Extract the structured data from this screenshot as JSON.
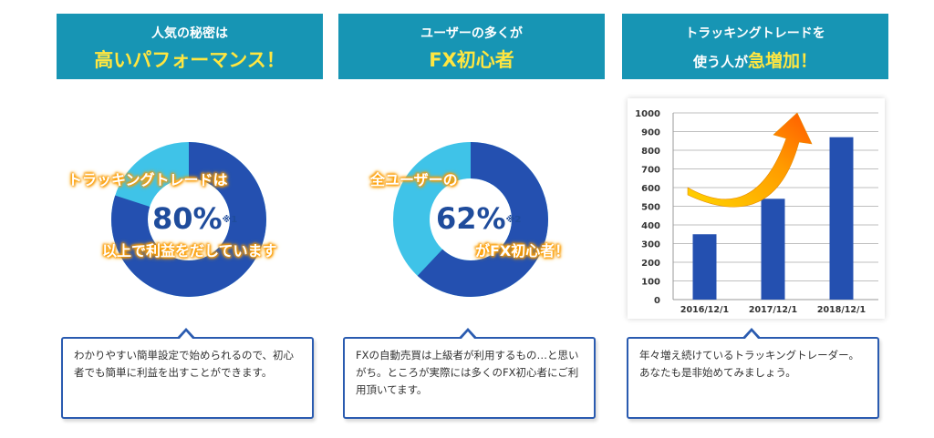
{
  "panels": [
    {
      "banner_line1": "人気の秘密は",
      "banner_line2": "高いパフォーマンス！",
      "donut_pct": 80,
      "pct_text": "80%",
      "note_mark": "※1",
      "glow_top": "トラッキングトレードは",
      "glow_bottom": "以上で利益をだしています",
      "description": "わかりやすい簡単設定で始められるので、初心者でも簡単に利益を出すことができます。"
    },
    {
      "banner_line1": "ユーザーの多くが",
      "banner_line2": "FX初心者",
      "donut_pct": 62,
      "pct_text": "62%",
      "note_mark": "※2",
      "glow_top": "全ユーザーの",
      "glow_bottom": "がFX初心者！",
      "description": "FXの自動売買は上級者が利用するもの…と思いがち。ところが実際には多くのFX初心者にご利用頂いてます。"
    },
    {
      "banner_line1": "トラッキングトレードを",
      "banner_line2_pre": "使う人が",
      "banner_line2_em": "急増加",
      "banner_line2_post": "！",
      "description": "年々増え続けているトラッキングトレーダー。あなたも是非始めてみましょう。"
    }
  ],
  "colors": {
    "banner": "#1795b4",
    "highlight": "#ffe640",
    "donut_dark": "#2450b0",
    "donut_light": "#3fc3e8",
    "bar": "#2450b0",
    "bubble_border": "#2a5bb0"
  },
  "chart_data": {
    "type": "bar",
    "categories": [
      "2016/12/1",
      "2017/12/1",
      "2018/12/1"
    ],
    "values": [
      350,
      540,
      870
    ],
    "ylim": [
      0,
      1000
    ],
    "yticks": [
      0,
      100,
      200,
      300,
      400,
      500,
      600,
      700,
      800,
      900,
      1000
    ],
    "grid": true,
    "annotation": "orange-rising-arrow"
  }
}
